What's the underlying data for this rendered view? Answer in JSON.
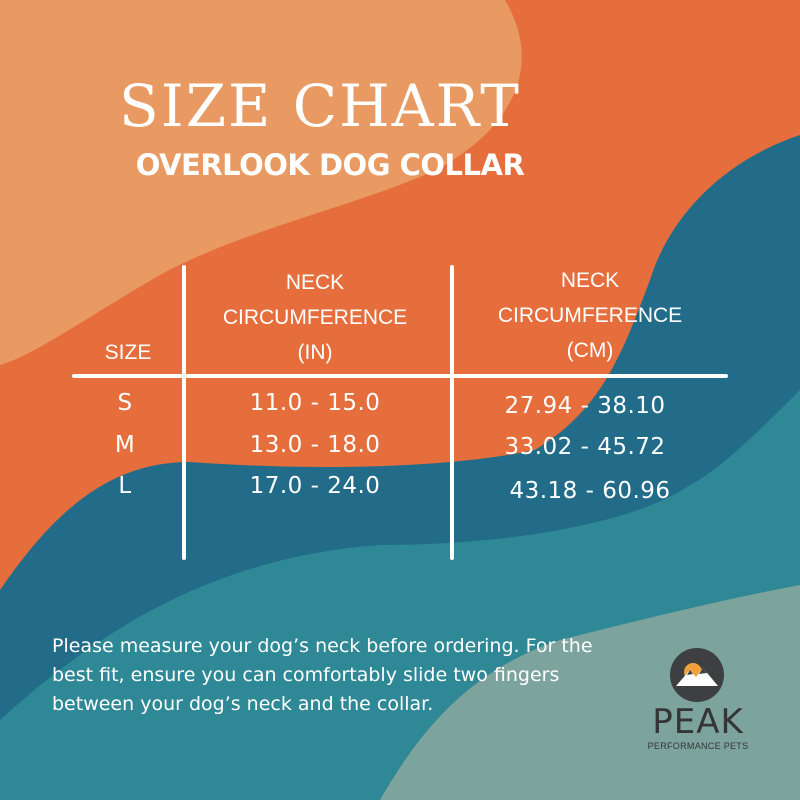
{
  "title": "SIZE CHART",
  "subtitle": "OVERLOOK DOG COLLAR",
  "table": {
    "headers": {
      "size": "SIZE",
      "in": [
        "NECK",
        "CIRCUMFERENCE",
        "(IN)"
      ],
      "cm": [
        "NECK",
        "CIRCUMFERENCE",
        "(CM)"
      ]
    },
    "rows": [
      {
        "size": "S",
        "in": "11.0 - 15.0",
        "cm": "27.94 - 38.10"
      },
      {
        "size": "M",
        "in": "13.0 - 18.0",
        "cm": "33.02 - 45.72"
      },
      {
        "size": "L",
        "in": "17.0 - 24.0",
        "cm": "43.18 - 60.96"
      }
    ]
  },
  "note": "Please measure your dog’s neck before ordering. For the best fit, ensure you can comfortably slide two fingers between your dog’s neck and the collar.",
  "logo": {
    "icon": "mountain-sun-icon",
    "name": "PEAK",
    "tagline": "PERFORMANCE PETS"
  },
  "colors": {
    "light_orange": "#e89a62",
    "orange": "#e56e3c",
    "dark_teal": "#226c89",
    "teal": "#2e8896",
    "sage": "#7da39d",
    "text": "#ffffff",
    "logo_dark": "#3d3f41"
  }
}
